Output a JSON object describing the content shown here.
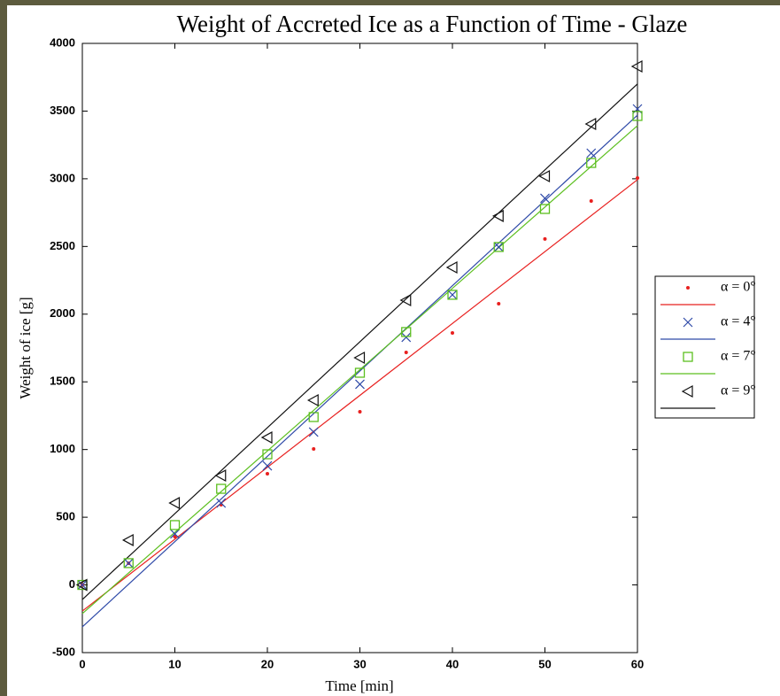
{
  "chart_data": {
    "type": "scatter",
    "title": "Weight of Accreted Ice as a Function of Time - Glaze",
    "x_label": "Time [min]",
    "y_label": "Weight of ice [g]",
    "x": [
      0,
      5,
      10,
      15,
      20,
      25,
      30,
      35,
      40,
      45,
      50,
      55,
      60
    ],
    "fit_x": [
      0,
      60
    ],
    "series": [
      {
        "name": "α = 0°",
        "color": "#e8201f",
        "marker": "dot",
        "values": [
          0,
          160,
          357,
          592,
          821,
          1004,
          1279,
          1717,
          1861,
          2077,
          2555,
          2836,
          3006
        ],
        "fit": [
          -193,
          2993
        ]
      },
      {
        "name": "α = 4°",
        "color": "#2f4aa8",
        "marker": "x",
        "values": [
          0,
          160,
          377,
          605,
          880,
          1129,
          1482,
          1829,
          2143,
          2496,
          2856,
          3189,
          3516
        ],
        "fit": [
          -310,
          3470
        ]
      },
      {
        "name": "α = 7°",
        "color": "#5cbf1f",
        "marker": "square",
        "values": [
          0,
          161,
          442,
          710,
          965,
          1240,
          1567,
          1868,
          2143,
          2496,
          2777,
          3117,
          3464
        ],
        "fit": [
          -212,
          3392
        ]
      },
      {
        "name": "α = 9°",
        "color": "#111111",
        "marker": "triangle-left",
        "values": [
          0,
          331,
          605,
          808,
          1089,
          1364,
          1678,
          2103,
          2345,
          2725,
          3019,
          3405,
          3830
        ],
        "fit": [
          -108,
          3700
        ]
      }
    ],
    "xlim": [
      0,
      60
    ],
    "xticks": [
      0,
      10,
      20,
      30,
      40,
      50,
      60
    ],
    "ylim": [
      -500,
      4000
    ],
    "yticks": [
      -500,
      0,
      500,
      1000,
      1500,
      2000,
      2500,
      3000,
      3500,
      4000
    ],
    "legend": "right"
  }
}
